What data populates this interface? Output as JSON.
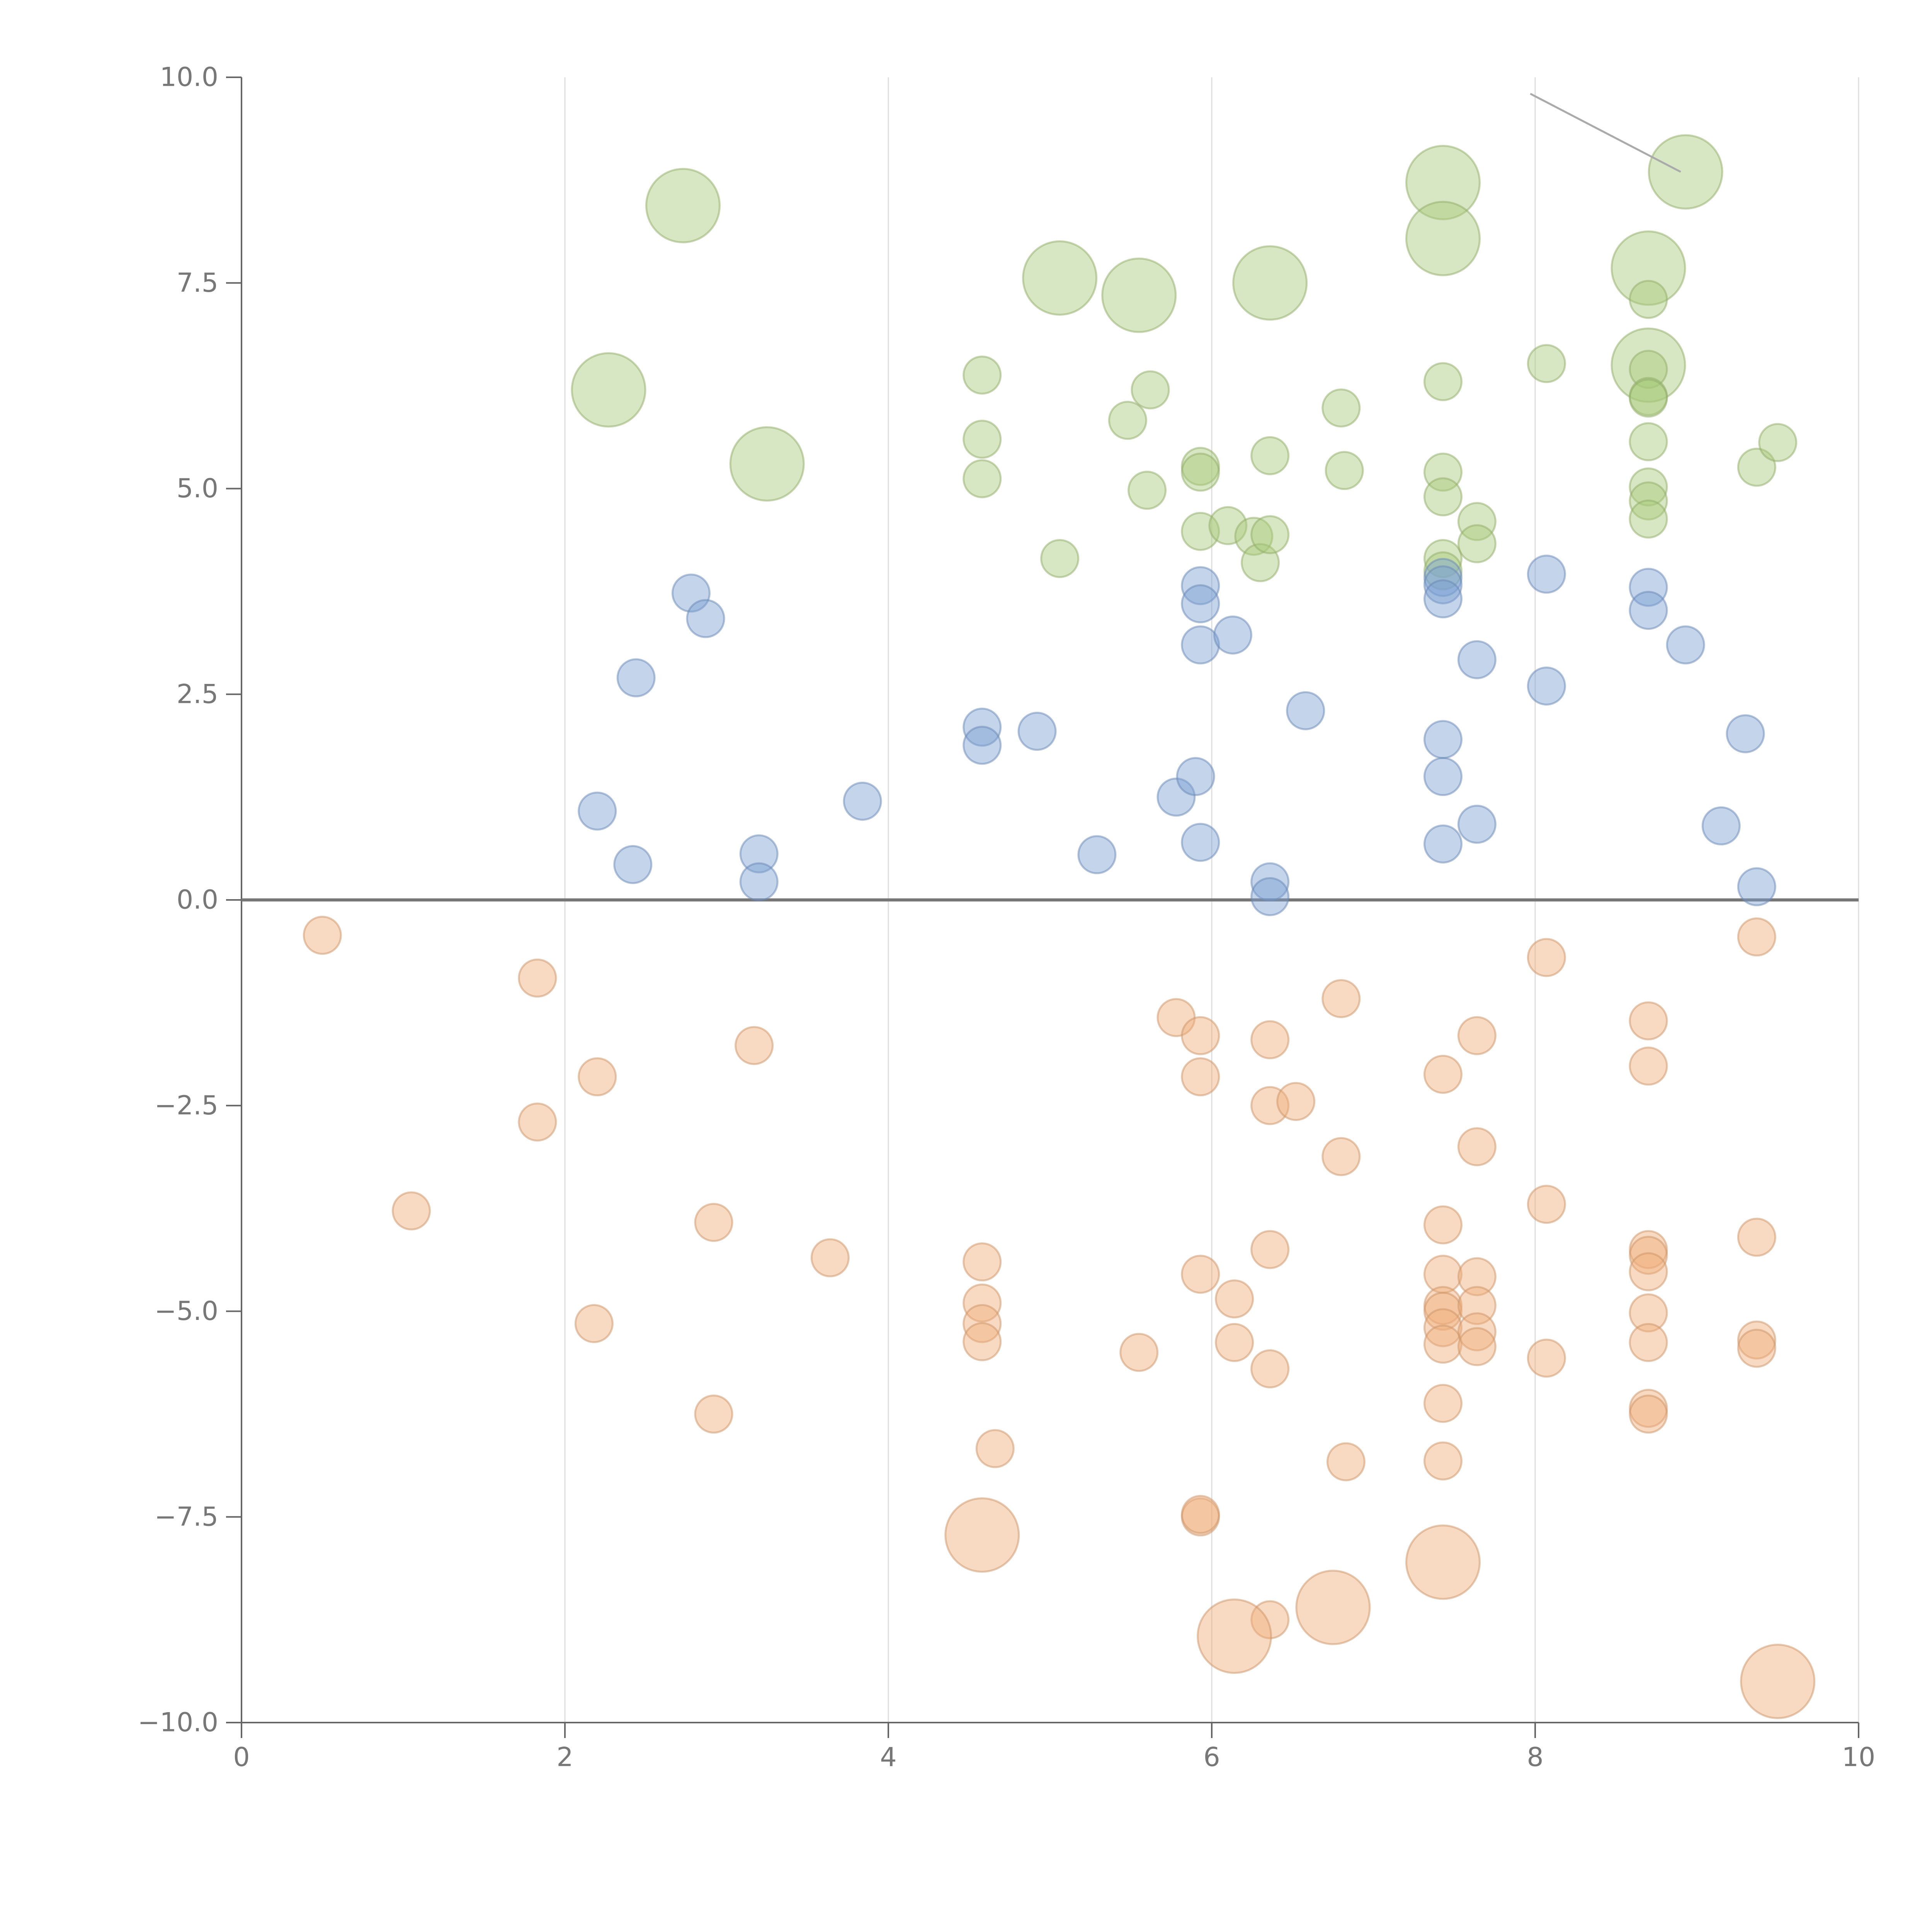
{
  "chart_data": {
    "type": "scatter",
    "title": "",
    "xlabel": "",
    "ylabel": "",
    "xlim": [
      0,
      10
    ],
    "ylim": [
      -10,
      10
    ],
    "grid": "vertical lines at x ticks",
    "x_ticks": [
      "0",
      "2",
      "4",
      "6",
      "8",
      "10"
    ],
    "y_ticks": [
      "10.0",
      "7.5",
      "5.0",
      "2.5",
      "0.0",
      "−2.5",
      "−5.0",
      "−7.5",
      "−10.0"
    ],
    "x_tick_values": [
      0,
      2,
      4,
      6,
      8,
      10
    ],
    "y_tick_values": [
      10,
      7.5,
      5,
      2.5,
      0,
      -2.5,
      -5,
      -7.5,
      -10
    ],
    "baseline_y": 0,
    "annotation_line": {
      "x": [
        7.97,
        8.9
      ],
      "y": [
        9.8,
        8.85
      ]
    },
    "series": [
      {
        "color": "#a9c97a",
        "points": [
          [
            2.27,
            6.2,
            3
          ],
          [
            2.73,
            8.44,
            3
          ],
          [
            3.25,
            5.3,
            3
          ],
          [
            5.06,
            7.56,
            3
          ],
          [
            5.55,
            7.35,
            3
          ],
          [
            6.36,
            7.5,
            3
          ],
          [
            7.43,
            8.72,
            3
          ],
          [
            7.43,
            8.04,
            3
          ],
          [
            8.7,
            7.68,
            3
          ],
          [
            8.7,
            6.5,
            3
          ],
          [
            8.93,
            8.85,
            3
          ],
          [
            4.58,
            6.38,
            1
          ],
          [
            4.58,
            5.6,
            1
          ],
          [
            4.58,
            5.12,
            1
          ],
          [
            5.06,
            4.15,
            1
          ],
          [
            5.48,
            5.83,
            1
          ],
          [
            5.62,
            6.2,
            1
          ],
          [
            5.6,
            4.98,
            1
          ],
          [
            5.93,
            5.27,
            1
          ],
          [
            5.93,
            5.2,
            1
          ],
          [
            5.93,
            4.48,
            1
          ],
          [
            6.1,
            4.55,
            1
          ],
          [
            6.26,
            4.42,
            1
          ],
          [
            6.3,
            4.1,
            1
          ],
          [
            6.36,
            5.4,
            1
          ],
          [
            6.36,
            4.44,
            1
          ],
          [
            6.8,
            5.98,
            1
          ],
          [
            6.82,
            5.22,
            1
          ],
          [
            7.43,
            6.3,
            1
          ],
          [
            7.43,
            5.2,
            1
          ],
          [
            7.43,
            4.9,
            1
          ],
          [
            7.43,
            4.15,
            1
          ],
          [
            7.43,
            4.0,
            1
          ],
          [
            7.64,
            4.6,
            1
          ],
          [
            7.64,
            4.33,
            1
          ],
          [
            8.07,
            6.52,
            1
          ],
          [
            8.7,
            7.3,
            1
          ],
          [
            8.7,
            6.45,
            1
          ],
          [
            8.7,
            6.12,
            1
          ],
          [
            8.7,
            6.1,
            1
          ],
          [
            8.7,
            5.57,
            1
          ],
          [
            8.7,
            5.02,
            1
          ],
          [
            8.7,
            4.85,
            1
          ],
          [
            8.7,
            4.63,
            1
          ],
          [
            9.37,
            5.26,
            1
          ],
          [
            9.5,
            5.56,
            1
          ]
        ]
      },
      {
        "color": "#7ba0d3",
        "points": [
          [
            2.2,
            1.08,
            1
          ],
          [
            2.42,
            0.43,
            1
          ],
          [
            2.44,
            2.7,
            1
          ],
          [
            2.78,
            3.73,
            1
          ],
          [
            2.87,
            3.42,
            1
          ],
          [
            3.2,
            0.56,
            1
          ],
          [
            3.2,
            0.22,
            1
          ],
          [
            3.84,
            1.2,
            1
          ],
          [
            4.58,
            2.1,
            1
          ],
          [
            4.58,
            1.88,
            1
          ],
          [
            4.92,
            2.05,
            1
          ],
          [
            5.29,
            0.55,
            1
          ],
          [
            5.78,
            1.25,
            1
          ],
          [
            5.9,
            1.5,
            1
          ],
          [
            5.93,
            3.82,
            1
          ],
          [
            5.93,
            3.6,
            1
          ],
          [
            5.93,
            3.1,
            1
          ],
          [
            5.93,
            0.7,
            1
          ],
          [
            6.13,
            3.22,
            1
          ],
          [
            6.36,
            0.22,
            1
          ],
          [
            6.36,
            0.04,
            1
          ],
          [
            6.58,
            2.3,
            1
          ],
          [
            7.43,
            3.92,
            1
          ],
          [
            7.43,
            3.83,
            1
          ],
          [
            7.43,
            3.66,
            1
          ],
          [
            7.43,
            1.95,
            1
          ],
          [
            7.43,
            1.5,
            1
          ],
          [
            7.43,
            0.68,
            1
          ],
          [
            7.64,
            2.92,
            1
          ],
          [
            7.64,
            0.92,
            1
          ],
          [
            8.07,
            3.96,
            1
          ],
          [
            8.07,
            2.6,
            1
          ],
          [
            8.7,
            3.8,
            1
          ],
          [
            8.7,
            3.52,
            1
          ],
          [
            8.93,
            3.1,
            1
          ],
          [
            9.15,
            0.9,
            1
          ],
          [
            9.3,
            2.02,
            1
          ],
          [
            9.37,
            0.16,
            1
          ]
        ]
      },
      {
        "color": "#efad7a",
        "points": [
          [
            0.5,
            -0.43,
            1
          ],
          [
            1.05,
            -3.78,
            1
          ],
          [
            1.83,
            -0.95,
            1
          ],
          [
            1.83,
            -2.7,
            1
          ],
          [
            2.2,
            -2.15,
            1
          ],
          [
            2.18,
            -5.15,
            1
          ],
          [
            2.92,
            -3.92,
            1
          ],
          [
            2.92,
            -6.25,
            1
          ],
          [
            3.17,
            -1.77,
            1
          ],
          [
            3.64,
            -4.35,
            1
          ],
          [
            4.58,
            -4.4,
            1
          ],
          [
            4.58,
            -4.9,
            1
          ],
          [
            4.58,
            -5.15,
            1
          ],
          [
            4.58,
            -5.37,
            1
          ],
          [
            4.66,
            -6.67,
            1
          ],
          [
            5.55,
            -5.5,
            1
          ],
          [
            5.78,
            -1.43,
            1
          ],
          [
            5.93,
            -1.65,
            1
          ],
          [
            5.93,
            -2.15,
            1
          ],
          [
            5.93,
            -4.55,
            1
          ],
          [
            5.93,
            -7.5,
            1
          ],
          [
            5.93,
            -7.47,
            1
          ],
          [
            6.14,
            -4.85,
            1
          ],
          [
            6.14,
            -5.38,
            1
          ],
          [
            6.36,
            -1.7,
            1
          ],
          [
            6.36,
            -2.5,
            1
          ],
          [
            6.36,
            -4.25,
            1
          ],
          [
            6.36,
            -5.7,
            1
          ],
          [
            6.36,
            -8.75,
            1
          ],
          [
            6.52,
            -2.45,
            1
          ],
          [
            6.8,
            -1.2,
            1
          ],
          [
            6.8,
            -3.12,
            1
          ],
          [
            6.83,
            -6.83,
            1
          ],
          [
            7.43,
            -2.12,
            1
          ],
          [
            7.43,
            -3.95,
            1
          ],
          [
            7.43,
            -4.55,
            1
          ],
          [
            7.43,
            -4.93,
            1
          ],
          [
            7.43,
            -5.0,
            1
          ],
          [
            7.43,
            -5.2,
            1
          ],
          [
            7.43,
            -5.4,
            1
          ],
          [
            7.43,
            -6.12,
            1
          ],
          [
            7.43,
            -6.82,
            1
          ],
          [
            7.64,
            -1.65,
            1
          ],
          [
            7.64,
            -3.0,
            1
          ],
          [
            7.64,
            -4.58,
            1
          ],
          [
            7.64,
            -4.93,
            1
          ],
          [
            7.64,
            -5.25,
            1
          ],
          [
            7.64,
            -5.43,
            1
          ],
          [
            8.07,
            -0.7,
            1
          ],
          [
            8.07,
            -3.7,
            1
          ],
          [
            8.07,
            -5.57,
            1
          ],
          [
            8.7,
            -1.47,
            1
          ],
          [
            8.7,
            -2.02,
            1
          ],
          [
            8.7,
            -4.25,
            1
          ],
          [
            8.7,
            -4.32,
            1
          ],
          [
            8.7,
            -4.52,
            1
          ],
          [
            8.7,
            -5.02,
            1
          ],
          [
            8.7,
            -5.38,
            1
          ],
          [
            8.7,
            -6.18,
            1
          ],
          [
            8.7,
            -6.25,
            1
          ],
          [
            9.37,
            -0.45,
            1
          ],
          [
            9.37,
            -4.1,
            1
          ],
          [
            9.37,
            -5.35,
            1
          ],
          [
            9.37,
            -5.45,
            1
          ],
          [
            4.58,
            -7.72,
            3
          ],
          [
            6.14,
            -8.95,
            3
          ],
          [
            6.75,
            -8.6,
            3
          ],
          [
            7.43,
            -8.05,
            3
          ],
          [
            9.5,
            -9.5,
            3
          ]
        ]
      }
    ]
  }
}
